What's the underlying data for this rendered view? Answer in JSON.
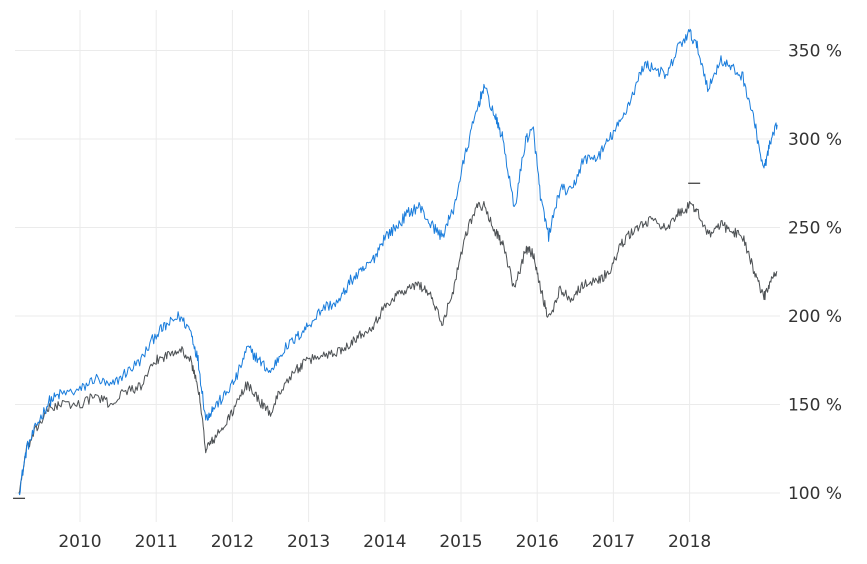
{
  "chart_data": {
    "type": "line",
    "title": "",
    "xlabel": "",
    "ylabel": "",
    "x_ticks": [
      "2010",
      "2011",
      "2012",
      "2013",
      "2014",
      "2015",
      "2016",
      "2017",
      "2018"
    ],
    "y_ticks": [
      "100 %",
      "150 %",
      "200 %",
      "250 %",
      "300 %",
      "350 %"
    ],
    "xlim": [
      2009.2,
      2019.2
    ],
    "ylim": [
      92,
      375
    ],
    "y_axis_side": "right",
    "grid": true,
    "legend": "none",
    "series": [
      {
        "color": "#1a7ddc",
        "values": [
          [
            2009.2,
            100
          ],
          [
            2009.3,
            125
          ],
          [
            2009.45,
            140
          ],
          [
            2009.6,
            152
          ],
          [
            2009.75,
            156
          ],
          [
            2010.0,
            158
          ],
          [
            2010.2,
            165
          ],
          [
            2010.4,
            160
          ],
          [
            2010.6,
            168
          ],
          [
            2010.8,
            175
          ],
          [
            2011.0,
            190
          ],
          [
            2011.15,
            195
          ],
          [
            2011.3,
            200
          ],
          [
            2011.45,
            192
          ],
          [
            2011.55,
            175
          ],
          [
            2011.65,
            142
          ],
          [
            2011.75,
            148
          ],
          [
            2011.9,
            155
          ],
          [
            2012.05,
            165
          ],
          [
            2012.2,
            182
          ],
          [
            2012.35,
            175
          ],
          [
            2012.5,
            168
          ],
          [
            2012.65,
            180
          ],
          [
            2012.85,
            188
          ],
          [
            2013.0,
            195
          ],
          [
            2013.2,
            205
          ],
          [
            2013.4,
            208
          ],
          [
            2013.55,
            220
          ],
          [
            2013.7,
            225
          ],
          [
            2013.85,
            232
          ],
          [
            2014.0,
            245
          ],
          [
            2014.15,
            250
          ],
          [
            2014.3,
            258
          ],
          [
            2014.45,
            262
          ],
          [
            2014.6,
            252
          ],
          [
            2014.75,
            245
          ],
          [
            2014.9,
            260
          ],
          [
            2015.05,
            290
          ],
          [
            2015.2,
            315
          ],
          [
            2015.3,
            330
          ],
          [
            2015.45,
            312
          ],
          [
            2015.55,
            300
          ],
          [
            2015.7,
            260
          ],
          [
            2015.85,
            300
          ],
          [
            2015.95,
            305
          ],
          [
            2016.05,
            265
          ],
          [
            2016.15,
            245
          ],
          [
            2016.3,
            272
          ],
          [
            2016.45,
            270
          ],
          [
            2016.6,
            288
          ],
          [
            2016.8,
            290
          ],
          [
            2016.95,
            300
          ],
          [
            2017.1,
            310
          ],
          [
            2017.25,
            325
          ],
          [
            2017.4,
            342
          ],
          [
            2017.55,
            340
          ],
          [
            2017.7,
            335
          ],
          [
            2017.85,
            352
          ],
          [
            2018.0,
            360
          ],
          [
            2018.1,
            352
          ],
          [
            2018.25,
            328
          ],
          [
            2018.4,
            345
          ],
          [
            2018.55,
            340
          ],
          [
            2018.7,
            335
          ],
          [
            2018.85,
            310
          ],
          [
            2018.97,
            282
          ],
          [
            2019.05,
            296
          ],
          [
            2019.15,
            308
          ]
        ]
      },
      {
        "color": "#4d5154",
        "values": [
          [
            2009.2,
            100
          ],
          [
            2009.3,
            125
          ],
          [
            2009.45,
            138
          ],
          [
            2009.6,
            148
          ],
          [
            2009.75,
            150
          ],
          [
            2010.0,
            150
          ],
          [
            2010.2,
            155
          ],
          [
            2010.4,
            150
          ],
          [
            2010.6,
            158
          ],
          [
            2010.8,
            160
          ],
          [
            2011.0,
            175
          ],
          [
            2011.15,
            178
          ],
          [
            2011.3,
            182
          ],
          [
            2011.45,
            175
          ],
          [
            2011.55,
            160
          ],
          [
            2011.65,
            125
          ],
          [
            2011.75,
            130
          ],
          [
            2011.9,
            138
          ],
          [
            2012.05,
            150
          ],
          [
            2012.2,
            162
          ],
          [
            2012.35,
            152
          ],
          [
            2012.5,
            145
          ],
          [
            2012.65,
            160
          ],
          [
            2012.85,
            170
          ],
          [
            2013.0,
            175
          ],
          [
            2013.2,
            178
          ],
          [
            2013.4,
            180
          ],
          [
            2013.55,
            185
          ],
          [
            2013.7,
            190
          ],
          [
            2013.85,
            195
          ],
          [
            2014.0,
            205
          ],
          [
            2014.15,
            212
          ],
          [
            2014.3,
            215
          ],
          [
            2014.45,
            218
          ],
          [
            2014.6,
            212
          ],
          [
            2014.75,
            195
          ],
          [
            2014.9,
            215
          ],
          [
            2015.05,
            245
          ],
          [
            2015.2,
            262
          ],
          [
            2015.3,
            262
          ],
          [
            2015.45,
            248
          ],
          [
            2015.55,
            240
          ],
          [
            2015.7,
            215
          ],
          [
            2015.85,
            238
          ],
          [
            2015.95,
            235
          ],
          [
            2016.05,
            215
          ],
          [
            2016.15,
            198
          ],
          [
            2016.3,
            215
          ],
          [
            2016.45,
            210
          ],
          [
            2016.6,
            218
          ],
          [
            2016.8,
            220
          ],
          [
            2016.95,
            225
          ],
          [
            2017.1,
            240
          ],
          [
            2017.25,
            248
          ],
          [
            2017.4,
            252
          ],
          [
            2017.55,
            255
          ],
          [
            2017.7,
            248
          ],
          [
            2017.85,
            258
          ],
          [
            2018.0,
            262
          ],
          [
            2018.1,
            260
          ],
          [
            2018.25,
            245
          ],
          [
            2018.4,
            252
          ],
          [
            2018.55,
            248
          ],
          [
            2018.7,
            245
          ],
          [
            2018.85,
            225
          ],
          [
            2018.97,
            210
          ],
          [
            2019.05,
            218
          ],
          [
            2019.15,
            225
          ]
        ]
      }
    ],
    "markers": [
      {
        "x": 2009.2,
        "y": 97
      },
      {
        "x": 2018.06,
        "y": 275
      }
    ]
  }
}
